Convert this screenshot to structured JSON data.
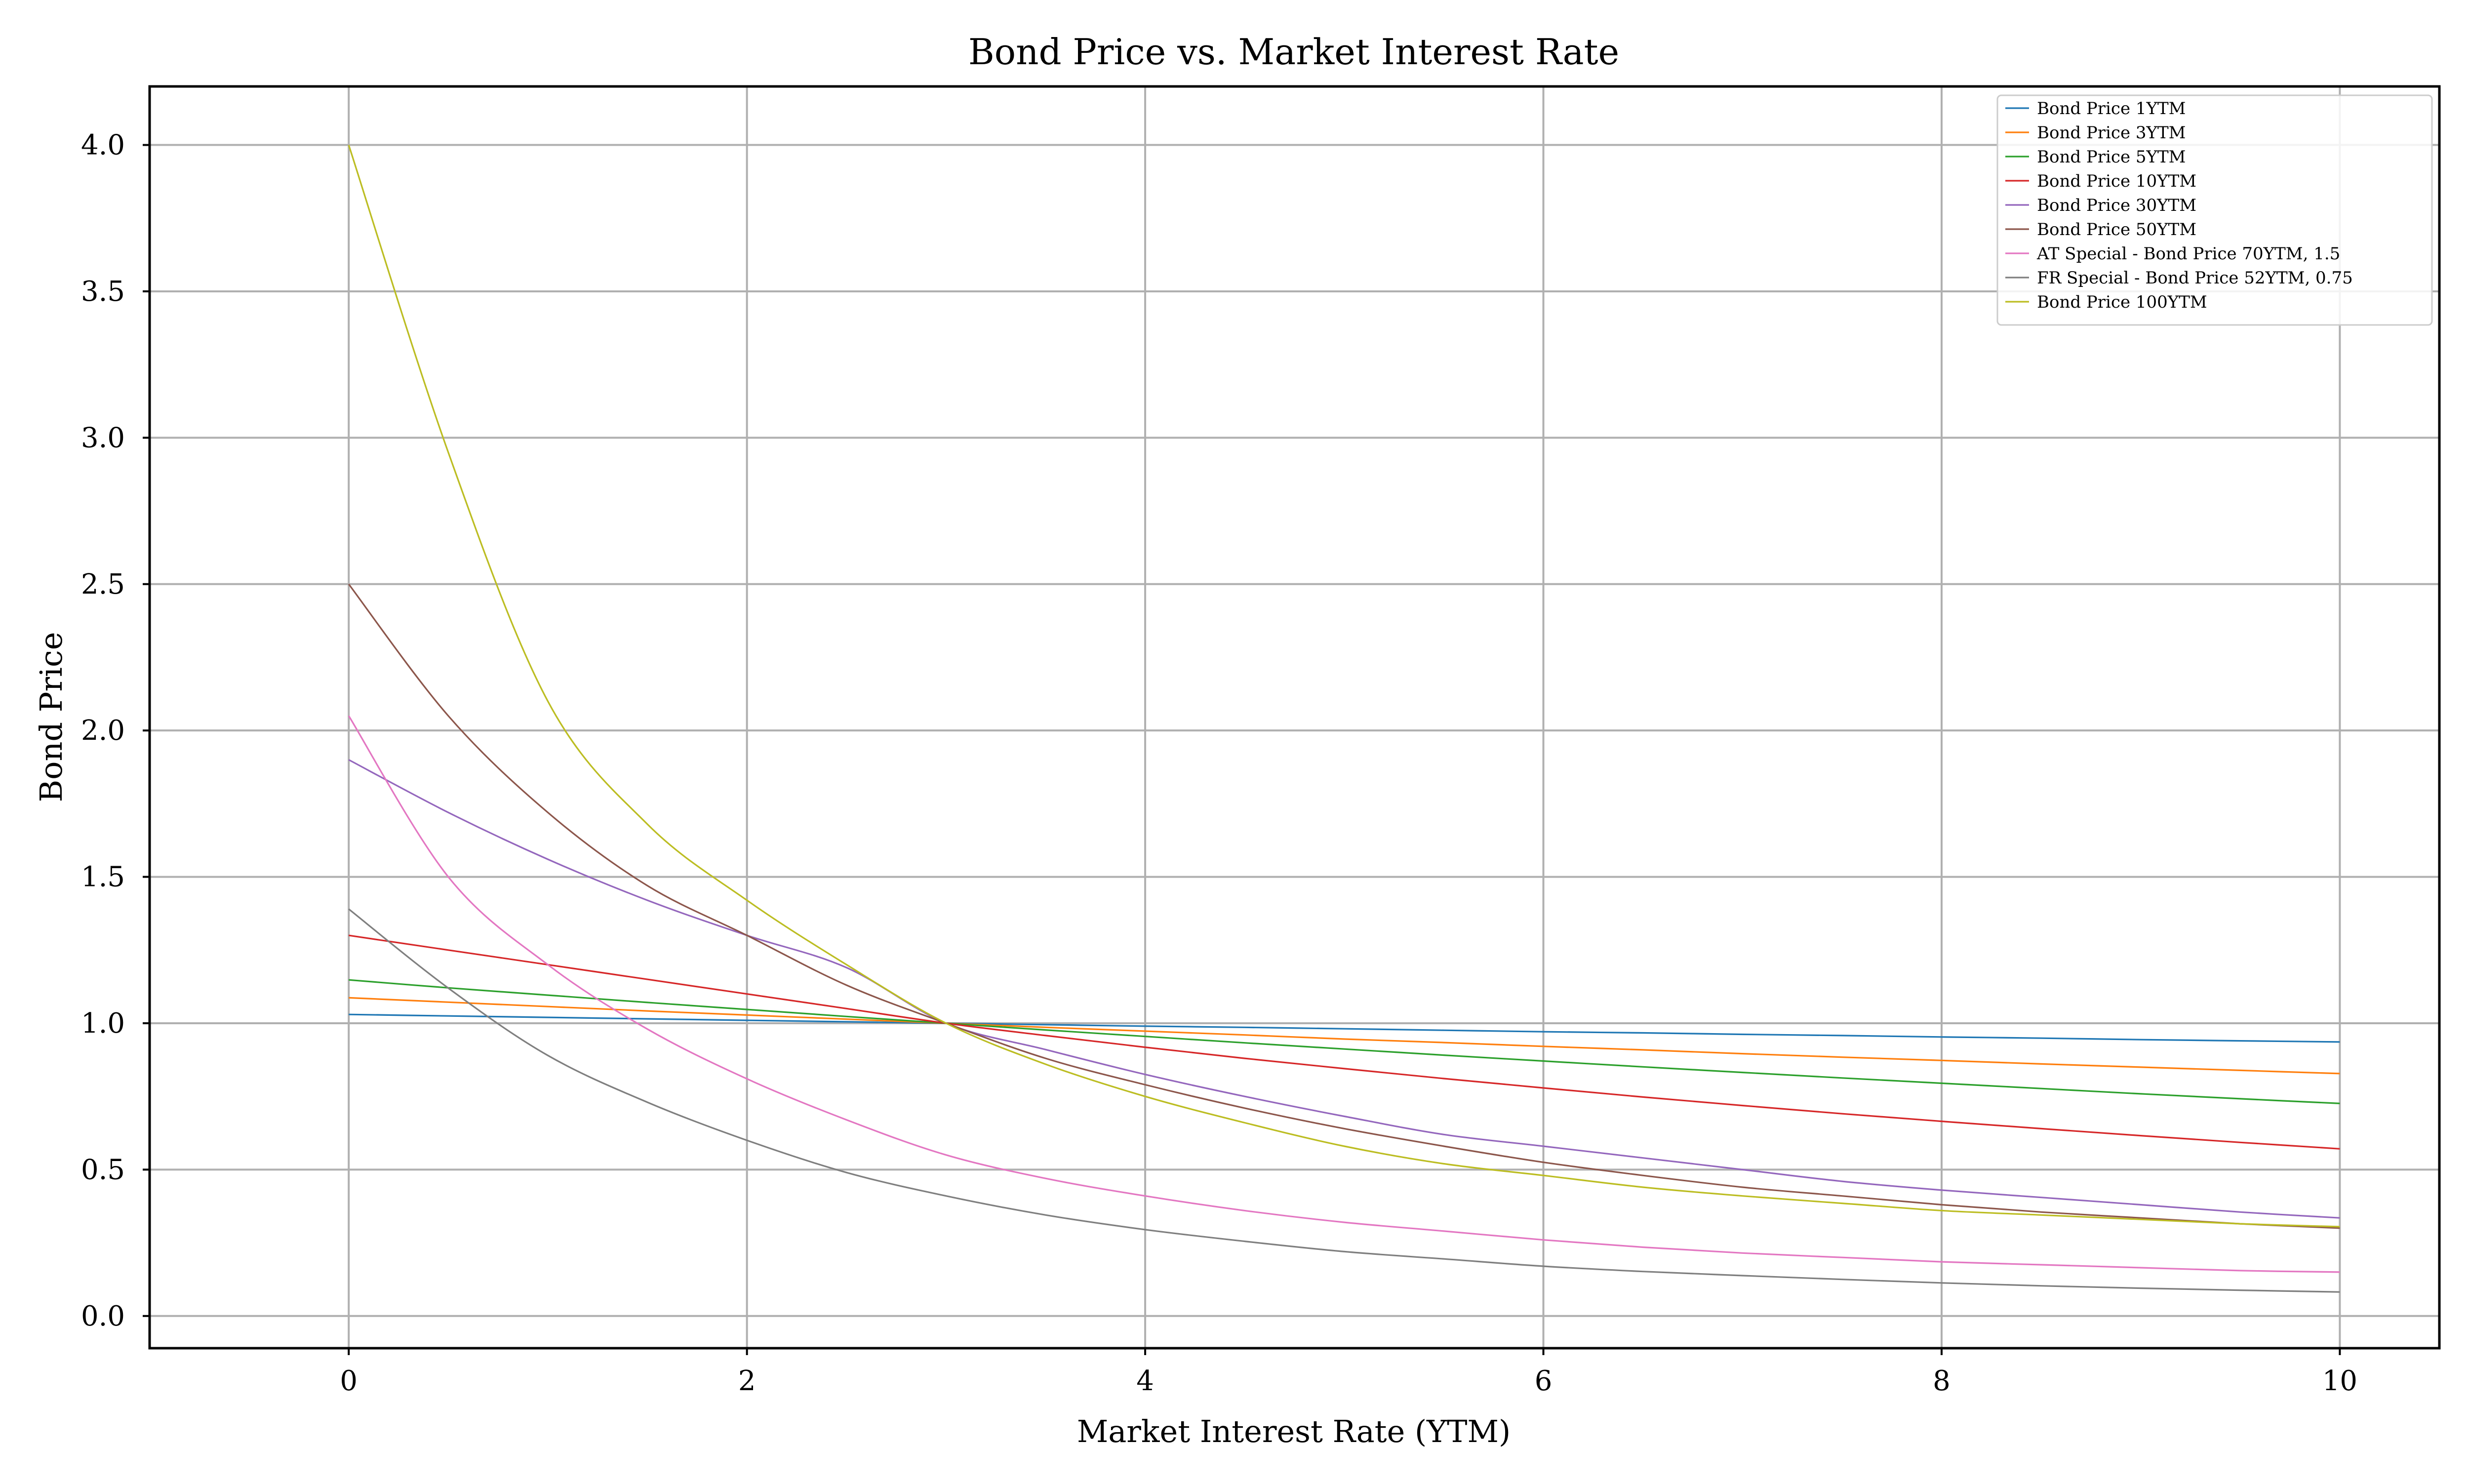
{
  "chart_data": {
    "type": "line",
    "title": "Bond Price vs. Market Interest Rate",
    "xlabel": "Market Interest Rate (YTM)",
    "ylabel": "Bond Price",
    "xlim": [
      -1,
      10.5
    ],
    "ylim": [
      -0.11,
      4.2
    ],
    "xticks": [
      0,
      2,
      4,
      6,
      8,
      10
    ],
    "yticks": [
      0.0,
      0.5,
      1.0,
      1.5,
      2.0,
      2.5,
      3.0,
      3.5,
      4.0
    ],
    "ytick_labels": [
      "0.0",
      "0.5",
      "1.0",
      "1.5",
      "2.0",
      "2.5",
      "3.0",
      "3.5",
      "4.0"
    ],
    "grid": true,
    "legend_position": "top-right",
    "x": [
      0,
      0.5,
      1,
      1.5,
      2,
      2.5,
      3,
      3.5,
      4,
      4.5,
      5,
      5.5,
      6,
      6.5,
      7,
      7.5,
      8,
      8.5,
      9,
      9.5,
      10
    ],
    "series": [
      {
        "name": "Bond Price 1YTM",
        "color": "#1f77b4",
        "values": [
          1.03,
          1.025,
          1.02,
          1.015,
          1.01,
          1.005,
          1.0,
          0.995,
          0.99,
          0.986,
          0.981,
          0.976,
          0.971,
          0.967,
          0.962,
          0.958,
          0.953,
          0.949,
          0.944,
          0.94,
          0.936
        ]
      },
      {
        "name": "Bond Price 3YTM",
        "color": "#ff7f0e",
        "values": [
          1.087,
          1.072,
          1.057,
          1.042,
          1.028,
          1.014,
          1.0,
          0.986,
          0.973,
          0.96,
          0.946,
          0.934,
          0.921,
          0.909,
          0.896,
          0.884,
          0.873,
          0.861,
          0.85,
          0.839,
          0.828
        ]
      },
      {
        "name": "Bond Price 5YTM",
        "color": "#2ca02c",
        "values": [
          1.148,
          1.121,
          1.096,
          1.071,
          1.047,
          1.023,
          1.0,
          0.977,
          0.955,
          0.933,
          0.912,
          0.891,
          0.871,
          0.851,
          0.832,
          0.813,
          0.795,
          0.777,
          0.759,
          0.742,
          0.726
        ]
      },
      {
        "name": "Bond Price 10YTM",
        "color": "#d62728",
        "values": [
          1.3,
          1.25,
          1.2,
          1.15,
          1.1,
          1.05,
          1.0,
          0.958,
          0.918,
          0.88,
          0.845,
          0.811,
          0.779,
          0.748,
          0.719,
          0.691,
          0.665,
          0.64,
          0.616,
          0.593,
          0.571
        ]
      },
      {
        "name": "Bond Price 30YTM",
        "color": "#9467bd",
        "values": [
          1.9,
          1.72,
          1.56,
          1.42,
          1.3,
          1.19,
          1.0,
          0.91,
          0.825,
          0.75,
          0.682,
          0.62,
          0.58,
          0.54,
          0.5,
          0.46,
          0.43,
          0.405,
          0.38,
          0.355,
          0.335
        ]
      },
      {
        "name": "Bond Price 50YTM",
        "color": "#8c564b",
        "values": [
          2.5,
          2.05,
          1.72,
          1.47,
          1.3,
          1.13,
          1.0,
          0.88,
          0.79,
          0.71,
          0.64,
          0.58,
          0.525,
          0.48,
          0.44,
          0.41,
          0.38,
          0.355,
          0.335,
          0.315,
          0.3
        ]
      },
      {
        "name": "AT Special - Bond Price 70YTM, 1.5",
        "color": "#e377c2",
        "values": [
          2.05,
          1.5,
          1.2,
          0.98,
          0.81,
          0.67,
          0.55,
          0.47,
          0.41,
          0.36,
          0.32,
          0.29,
          0.26,
          0.235,
          0.215,
          0.2,
          0.185,
          0.175,
          0.165,
          0.155,
          0.15
        ]
      },
      {
        "name": "FR Special - Bond Price 52YTM, 0.75",
        "color": "#7f7f7f",
        "values": [
          1.39,
          1.12,
          0.89,
          0.73,
          0.6,
          0.49,
          0.41,
          0.345,
          0.295,
          0.255,
          0.22,
          0.195,
          0.17,
          0.152,
          0.138,
          0.125,
          0.113,
          0.103,
          0.095,
          0.088,
          0.082
        ]
      },
      {
        "name": "Bond Price 100YTM",
        "color": "#bcbd22",
        "values": [
          4.0,
          2.95,
          2.1,
          1.68,
          1.42,
          1.2,
          1.0,
          0.86,
          0.75,
          0.66,
          0.58,
          0.52,
          0.48,
          0.44,
          0.41,
          0.385,
          0.36,
          0.345,
          0.33,
          0.315,
          0.305
        ]
      }
    ]
  }
}
